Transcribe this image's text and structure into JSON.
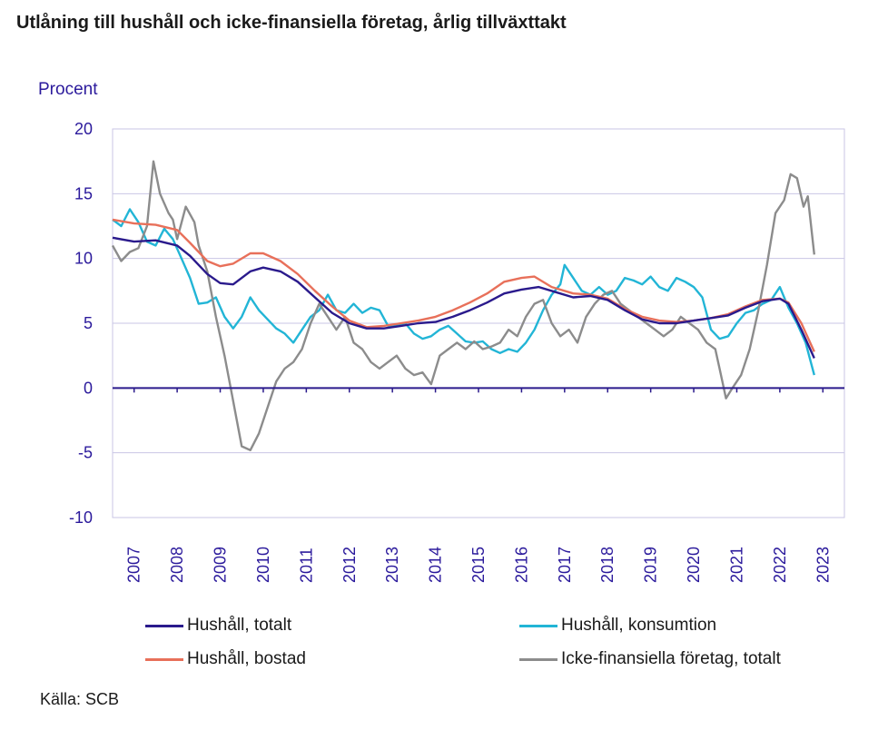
{
  "title": "Utlåning till hushåll och icke-finansiella företag, årlig tillväxttakt",
  "source": "Källa: SCB",
  "chart_data": {
    "type": "line",
    "ylabel": "Procent",
    "ylim": [
      -10,
      20
    ],
    "yticks": [
      20,
      15,
      10,
      5,
      0,
      -5,
      -10
    ],
    "xlim": [
      2006.5,
      2023.5
    ],
    "xticks": [
      "2007",
      "2008",
      "2009",
      "2010",
      "2011",
      "2012",
      "2013",
      "2014",
      "2015",
      "2016",
      "2017",
      "2018",
      "2019",
      "2020",
      "2021",
      "2022",
      "2023"
    ],
    "grid": true,
    "series": [
      {
        "name": "Hushåll, totalt",
        "color": "#2a1a8c",
        "points": [
          [
            2006.5,
            11.6
          ],
          [
            2007.0,
            11.3
          ],
          [
            2007.5,
            11.4
          ],
          [
            2008.0,
            11.0
          ],
          [
            2008.3,
            10.2
          ],
          [
            2008.7,
            8.8
          ],
          [
            2009.0,
            8.1
          ],
          [
            2009.3,
            8.0
          ],
          [
            2009.7,
            9.0
          ],
          [
            2010.0,
            9.3
          ],
          [
            2010.4,
            9.0
          ],
          [
            2010.8,
            8.2
          ],
          [
            2011.2,
            7.0
          ],
          [
            2011.6,
            5.8
          ],
          [
            2012.0,
            5.0
          ],
          [
            2012.4,
            4.6
          ],
          [
            2012.8,
            4.6
          ],
          [
            2013.2,
            4.8
          ],
          [
            2013.6,
            5.0
          ],
          [
            2014.0,
            5.1
          ],
          [
            2014.4,
            5.5
          ],
          [
            2014.8,
            6.0
          ],
          [
            2015.2,
            6.6
          ],
          [
            2015.6,
            7.3
          ],
          [
            2016.0,
            7.6
          ],
          [
            2016.4,
            7.8
          ],
          [
            2016.8,
            7.4
          ],
          [
            2017.2,
            7.0
          ],
          [
            2017.6,
            7.1
          ],
          [
            2018.0,
            6.8
          ],
          [
            2018.4,
            6.0
          ],
          [
            2018.8,
            5.3
          ],
          [
            2019.2,
            5.0
          ],
          [
            2019.6,
            5.0
          ],
          [
            2020.0,
            5.2
          ],
          [
            2020.4,
            5.4
          ],
          [
            2020.8,
            5.6
          ],
          [
            2021.2,
            6.2
          ],
          [
            2021.6,
            6.7
          ],
          [
            2022.0,
            6.9
          ],
          [
            2022.2,
            6.5
          ],
          [
            2022.5,
            4.5
          ],
          [
            2022.8,
            2.3
          ]
        ]
      },
      {
        "name": "Hushåll, konsumtion",
        "color": "#22b5d6",
        "points": [
          [
            2006.5,
            13.0
          ],
          [
            2006.7,
            12.5
          ],
          [
            2006.9,
            13.8
          ],
          [
            2007.1,
            12.8
          ],
          [
            2007.3,
            11.3
          ],
          [
            2007.5,
            11.0
          ],
          [
            2007.7,
            12.3
          ],
          [
            2007.9,
            11.5
          ],
          [
            2008.1,
            10.0
          ],
          [
            2008.3,
            8.5
          ],
          [
            2008.5,
            6.5
          ],
          [
            2008.7,
            6.6
          ],
          [
            2008.9,
            7.0
          ],
          [
            2009.1,
            5.5
          ],
          [
            2009.3,
            4.6
          ],
          [
            2009.5,
            5.5
          ],
          [
            2009.7,
            7.0
          ],
          [
            2009.9,
            6.0
          ],
          [
            2010.1,
            5.3
          ],
          [
            2010.3,
            4.6
          ],
          [
            2010.5,
            4.2
          ],
          [
            2010.7,
            3.5
          ],
          [
            2010.9,
            4.5
          ],
          [
            2011.1,
            5.5
          ],
          [
            2011.3,
            6.0
          ],
          [
            2011.5,
            7.2
          ],
          [
            2011.7,
            6.0
          ],
          [
            2011.9,
            5.8
          ],
          [
            2012.1,
            6.5
          ],
          [
            2012.3,
            5.8
          ],
          [
            2012.5,
            6.2
          ],
          [
            2012.7,
            6.0
          ],
          [
            2012.9,
            4.8
          ],
          [
            2013.1,
            4.9
          ],
          [
            2013.3,
            5.0
          ],
          [
            2013.5,
            4.2
          ],
          [
            2013.7,
            3.8
          ],
          [
            2013.9,
            4.0
          ],
          [
            2014.1,
            4.5
          ],
          [
            2014.3,
            4.8
          ],
          [
            2014.5,
            4.2
          ],
          [
            2014.7,
            3.6
          ],
          [
            2014.9,
            3.5
          ],
          [
            2015.1,
            3.6
          ],
          [
            2015.3,
            3.0
          ],
          [
            2015.5,
            2.7
          ],
          [
            2015.7,
            3.0
          ],
          [
            2015.9,
            2.8
          ],
          [
            2016.1,
            3.5
          ],
          [
            2016.3,
            4.5
          ],
          [
            2016.5,
            6.0
          ],
          [
            2016.7,
            7.2
          ],
          [
            2016.9,
            8.0
          ],
          [
            2017.0,
            9.5
          ],
          [
            2017.2,
            8.5
          ],
          [
            2017.4,
            7.5
          ],
          [
            2017.6,
            7.2
          ],
          [
            2017.8,
            7.8
          ],
          [
            2018.0,
            7.2
          ],
          [
            2018.2,
            7.5
          ],
          [
            2018.4,
            8.5
          ],
          [
            2018.6,
            8.3
          ],
          [
            2018.8,
            8.0
          ],
          [
            2019.0,
            8.6
          ],
          [
            2019.2,
            7.8
          ],
          [
            2019.4,
            7.5
          ],
          [
            2019.6,
            8.5
          ],
          [
            2019.8,
            8.2
          ],
          [
            2020.0,
            7.8
          ],
          [
            2020.2,
            7.0
          ],
          [
            2020.4,
            4.5
          ],
          [
            2020.6,
            3.8
          ],
          [
            2020.8,
            4.0
          ],
          [
            2021.0,
            5.0
          ],
          [
            2021.2,
            5.8
          ],
          [
            2021.4,
            6.0
          ],
          [
            2021.6,
            6.5
          ],
          [
            2021.8,
            6.8
          ],
          [
            2022.0,
            7.8
          ],
          [
            2022.2,
            6.2
          ],
          [
            2022.4,
            5.0
          ],
          [
            2022.6,
            3.5
          ],
          [
            2022.8,
            1.0
          ]
        ]
      },
      {
        "name": "Hushåll, bostad",
        "color": "#e8705a",
        "points": [
          [
            2006.5,
            13.0
          ],
          [
            2007.0,
            12.7
          ],
          [
            2007.5,
            12.6
          ],
          [
            2008.0,
            12.2
          ],
          [
            2008.3,
            11.2
          ],
          [
            2008.7,
            9.8
          ],
          [
            2009.0,
            9.4
          ],
          [
            2009.3,
            9.6
          ],
          [
            2009.7,
            10.4
          ],
          [
            2010.0,
            10.4
          ],
          [
            2010.4,
            9.8
          ],
          [
            2010.8,
            8.8
          ],
          [
            2011.2,
            7.5
          ],
          [
            2011.6,
            6.3
          ],
          [
            2012.0,
            5.2
          ],
          [
            2012.4,
            4.7
          ],
          [
            2012.8,
            4.8
          ],
          [
            2013.2,
            5.0
          ],
          [
            2013.6,
            5.2
          ],
          [
            2014.0,
            5.5
          ],
          [
            2014.4,
            6.0
          ],
          [
            2014.8,
            6.6
          ],
          [
            2015.2,
            7.3
          ],
          [
            2015.6,
            8.2
          ],
          [
            2016.0,
            8.5
          ],
          [
            2016.3,
            8.6
          ],
          [
            2016.7,
            7.8
          ],
          [
            2017.2,
            7.3
          ],
          [
            2017.6,
            7.2
          ],
          [
            2018.0,
            6.9
          ],
          [
            2018.4,
            6.1
          ],
          [
            2018.8,
            5.5
          ],
          [
            2019.2,
            5.2
          ],
          [
            2019.6,
            5.1
          ],
          [
            2020.0,
            5.2
          ],
          [
            2020.4,
            5.4
          ],
          [
            2020.8,
            5.7
          ],
          [
            2021.2,
            6.3
          ],
          [
            2021.6,
            6.8
          ],
          [
            2022.0,
            6.9
          ],
          [
            2022.2,
            6.6
          ],
          [
            2022.5,
            5.0
          ],
          [
            2022.8,
            2.8
          ]
        ]
      },
      {
        "name": "Icke-finansiella företag, totalt",
        "color": "#8c8c8c",
        "points": [
          [
            2006.5,
            11.0
          ],
          [
            2006.7,
            9.8
          ],
          [
            2006.9,
            10.5
          ],
          [
            2007.1,
            10.8
          ],
          [
            2007.3,
            12.5
          ],
          [
            2007.45,
            17.5
          ],
          [
            2007.6,
            15.0
          ],
          [
            2007.8,
            13.5
          ],
          [
            2007.9,
            13.0
          ],
          [
            2008.0,
            11.5
          ],
          [
            2008.2,
            14.0
          ],
          [
            2008.4,
            12.8
          ],
          [
            2008.5,
            11.0
          ],
          [
            2008.7,
            9.0
          ],
          [
            2008.9,
            5.5
          ],
          [
            2009.1,
            2.5
          ],
          [
            2009.3,
            -1.0
          ],
          [
            2009.5,
            -4.5
          ],
          [
            2009.7,
            -4.8
          ],
          [
            2009.9,
            -3.5
          ],
          [
            2010.1,
            -1.5
          ],
          [
            2010.3,
            0.5
          ],
          [
            2010.5,
            1.5
          ],
          [
            2010.7,
            2.0
          ],
          [
            2010.9,
            3.0
          ],
          [
            2011.1,
            5.0
          ],
          [
            2011.3,
            6.5
          ],
          [
            2011.5,
            5.5
          ],
          [
            2011.7,
            4.5
          ],
          [
            2011.9,
            5.5
          ],
          [
            2012.1,
            3.5
          ],
          [
            2012.3,
            3.0
          ],
          [
            2012.5,
            2.0
          ],
          [
            2012.7,
            1.5
          ],
          [
            2012.9,
            2.0
          ],
          [
            2013.1,
            2.5
          ],
          [
            2013.3,
            1.5
          ],
          [
            2013.5,
            1.0
          ],
          [
            2013.7,
            1.2
          ],
          [
            2013.9,
            0.3
          ],
          [
            2014.1,
            2.5
          ],
          [
            2014.3,
            3.0
          ],
          [
            2014.5,
            3.5
          ],
          [
            2014.7,
            3.0
          ],
          [
            2014.9,
            3.6
          ],
          [
            2015.1,
            3.0
          ],
          [
            2015.3,
            3.2
          ],
          [
            2015.5,
            3.5
          ],
          [
            2015.7,
            4.5
          ],
          [
            2015.9,
            4.0
          ],
          [
            2016.1,
            5.5
          ],
          [
            2016.3,
            6.5
          ],
          [
            2016.5,
            6.8
          ],
          [
            2016.7,
            5.0
          ],
          [
            2016.9,
            4.0
          ],
          [
            2017.1,
            4.5
          ],
          [
            2017.3,
            3.5
          ],
          [
            2017.5,
            5.5
          ],
          [
            2017.7,
            6.5
          ],
          [
            2017.9,
            7.2
          ],
          [
            2018.1,
            7.5
          ],
          [
            2018.3,
            6.5
          ],
          [
            2018.5,
            6.0
          ],
          [
            2018.7,
            5.5
          ],
          [
            2018.9,
            5.0
          ],
          [
            2019.1,
            4.5
          ],
          [
            2019.3,
            4.0
          ],
          [
            2019.5,
            4.5
          ],
          [
            2019.7,
            5.5
          ],
          [
            2019.9,
            5.0
          ],
          [
            2020.1,
            4.5
          ],
          [
            2020.3,
            3.5
          ],
          [
            2020.5,
            3.0
          ],
          [
            2020.6,
            1.5
          ],
          [
            2020.75,
            -0.8
          ],
          [
            2020.9,
            0.0
          ],
          [
            2021.1,
            1.0
          ],
          [
            2021.3,
            3.0
          ],
          [
            2021.5,
            6.0
          ],
          [
            2021.7,
            9.5
          ],
          [
            2021.9,
            13.5
          ],
          [
            2022.1,
            14.5
          ],
          [
            2022.25,
            16.5
          ],
          [
            2022.4,
            16.2
          ],
          [
            2022.55,
            14.0
          ],
          [
            2022.65,
            14.8
          ],
          [
            2022.8,
            10.3
          ]
        ]
      }
    ]
  }
}
